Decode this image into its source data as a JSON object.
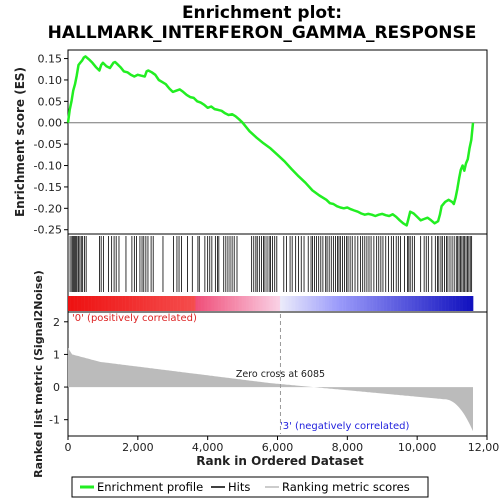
{
  "chart_data": {
    "type": "line",
    "title_line1": "Enrichment plot:",
    "title_line2": "HALLMARK_INTERFERON_GAMMA_RESPONSE",
    "ylabel_top": "Enrichment score (ES)",
    "ylabel_bottom": "Ranked list metric (Signal2Noise)",
    "xlabel": "Rank in Ordered Dataset",
    "xlim": [
      0,
      12000
    ],
    "ylim_es": [
      -0.26,
      0.17
    ],
    "ylim_metric": [
      -1.5,
      2.3
    ],
    "x_ticks": [
      0,
      2000,
      4000,
      6000,
      8000,
      10000,
      12000
    ],
    "x_tick_labels": [
      "0",
      "2,000",
      "4,000",
      "6,000",
      "8,000",
      "10,000",
      "12,000"
    ],
    "es_ticks": [
      0.15,
      0.1,
      0.05,
      0.0,
      -0.05,
      -0.1,
      -0.15,
      -0.2,
      -0.25
    ],
    "es_tick_labels": [
      "0.15",
      "0.10",
      "0.05",
      "0.00",
      "-0.05",
      "-0.10",
      "-0.15",
      "-0.20",
      "-0.25"
    ],
    "metric_ticks": [
      2,
      1,
      0,
      -1
    ],
    "metric_tick_labels": [
      "2",
      "1",
      "0",
      "-1"
    ],
    "n_genes": 11600,
    "zero_cross": 6085,
    "zero_cross_label": "Zero cross at 6085",
    "pos_label": "'0' (positively correlated)",
    "neg_label": "'3' (negatively correlated)",
    "colors": {
      "es_line": "#22ee22",
      "pos_band": "#ee1111",
      "neg_band": "#1111cc",
      "metric_fill": "#bbbbbb",
      "hits": "#000000"
    },
    "es_curve": {
      "x": [
        0,
        50,
        100,
        150,
        200,
        250,
        300,
        350,
        400,
        450,
        500,
        600,
        700,
        800,
        900,
        950,
        1000,
        1100,
        1200,
        1300,
        1350,
        1400,
        1500,
        1600,
        1700,
        1800,
        1900,
        2000,
        2100,
        2200,
        2250,
        2300,
        2400,
        2500,
        2600,
        2700,
        2800,
        2900,
        3000,
        3100,
        3200,
        3300,
        3400,
        3500,
        3600,
        3700,
        3800,
        3900,
        4000,
        4100,
        4200,
        4300,
        4400,
        4500,
        4600,
        4700,
        4800,
        4900,
        5000,
        5200,
        5400,
        5600,
        5800,
        6000,
        6200,
        6400,
        6600,
        6800,
        7000,
        7200,
        7400,
        7500,
        7600,
        7700,
        7800,
        7900,
        8000,
        8100,
        8200,
        8300,
        8400,
        8500,
        8600,
        8700,
        8800,
        8900,
        9000,
        9100,
        9200,
        9300,
        9400,
        9500,
        9600,
        9700,
        9750,
        9800,
        9900,
        10000,
        10100,
        10200,
        10300,
        10400,
        10500,
        10600,
        10650,
        10700,
        10800,
        10900,
        11000,
        11050,
        11100,
        11150,
        11200,
        11250,
        11300,
        11350,
        11400,
        11450,
        11500,
        11550,
        11600
      ],
      "y": [
        0.0,
        0.03,
        0.05,
        0.075,
        0.09,
        0.11,
        0.135,
        0.14,
        0.145,
        0.152,
        0.155,
        0.148,
        0.14,
        0.13,
        0.122,
        0.135,
        0.14,
        0.132,
        0.128,
        0.14,
        0.142,
        0.138,
        0.13,
        0.12,
        0.118,
        0.112,
        0.108,
        0.112,
        0.11,
        0.108,
        0.12,
        0.122,
        0.118,
        0.112,
        0.1,
        0.095,
        0.09,
        0.08,
        0.072,
        0.075,
        0.078,
        0.072,
        0.065,
        0.06,
        0.058,
        0.05,
        0.047,
        0.042,
        0.035,
        0.038,
        0.032,
        0.03,
        0.028,
        0.022,
        0.018,
        0.02,
        0.015,
        0.008,
        0.0,
        -0.02,
        -0.035,
        -0.048,
        -0.06,
        -0.075,
        -0.09,
        -0.108,
        -0.125,
        -0.14,
        -0.158,
        -0.17,
        -0.18,
        -0.188,
        -0.19,
        -0.195,
        -0.198,
        -0.2,
        -0.198,
        -0.202,
        -0.205,
        -0.208,
        -0.212,
        -0.215,
        -0.213,
        -0.215,
        -0.218,
        -0.215,
        -0.213,
        -0.216,
        -0.218,
        -0.214,
        -0.22,
        -0.228,
        -0.235,
        -0.24,
        -0.225,
        -0.208,
        -0.212,
        -0.22,
        -0.228,
        -0.225,
        -0.222,
        -0.228,
        -0.235,
        -0.23,
        -0.215,
        -0.195,
        -0.185,
        -0.18,
        -0.185,
        -0.19,
        -0.175,
        -0.155,
        -0.13,
        -0.11,
        -0.1,
        -0.112,
        -0.095,
        -0.085,
        -0.06,
        -0.04,
        0.0
      ]
    },
    "hit_positions": [
      60,
      110,
      140,
      170,
      200,
      230,
      260,
      300,
      340,
      380,
      420,
      470,
      520,
      900,
      950,
      1020,
      1160,
      1250,
      1320,
      1380,
      1460,
      1660,
      1830,
      1900,
      1960,
      2060,
      2120,
      2170,
      2230,
      2290,
      2380,
      2440,
      2720,
      3020,
      3120,
      3180,
      3250,
      3420,
      3560,
      3720,
      3760,
      3920,
      4000,
      4060,
      4120,
      4220,
      4280,
      4320,
      4460,
      4520,
      4580,
      4640,
      4700,
      4760,
      4840,
      5260,
      5320,
      5380,
      5420,
      5480,
      5540,
      5600,
      5640,
      5700,
      5760,
      5800,
      5860,
      5920,
      5980,
      6180,
      6260,
      6360,
      6420,
      6520,
      6600,
      6680,
      6760,
      6880,
      6960,
      7000,
      7060,
      7120,
      7180,
      7240,
      7300,
      7380,
      7420,
      7480,
      7540,
      7600,
      7660,
      7720,
      7760,
      7800,
      7860,
      7920,
      7980,
      8020,
      8080,
      8140,
      8220,
      8300,
      8380,
      8440,
      8500,
      8560,
      8620,
      8680,
      8760,
      8840,
      8900,
      8960,
      9020,
      9100,
      9180,
      9260,
      9320,
      9400,
      9460,
      9520,
      9640,
      9720,
      9760,
      9800,
      9860,
      9920,
      10100,
      10200,
      10260,
      10320,
      10420,
      10520,
      10580,
      10620,
      10680,
      10720,
      10780,
      10840,
      10880,
      10940,
      11000,
      11060,
      11120,
      11160,
      11200,
      11240,
      11280,
      11320,
      11360,
      11400,
      11440,
      11480,
      11520,
      11560
    ]
  }
}
